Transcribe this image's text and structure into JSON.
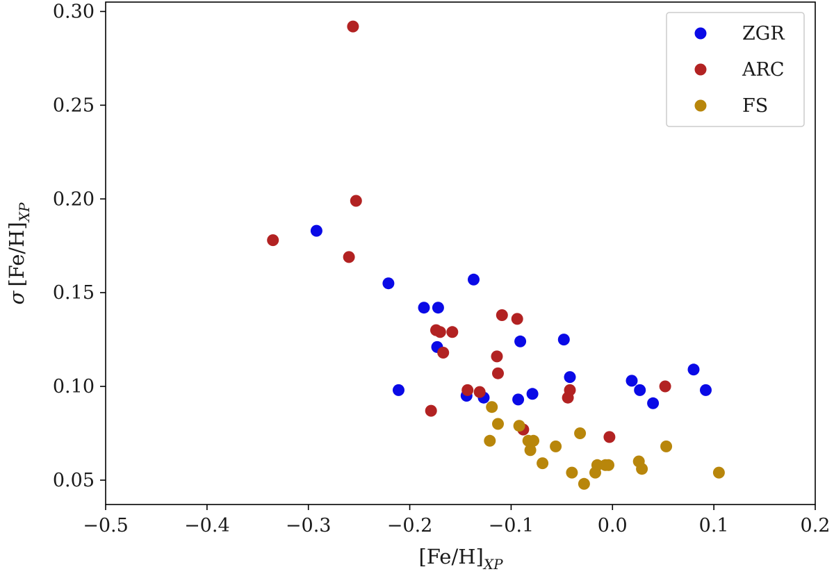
{
  "chart_data": {
    "type": "scatter",
    "xlabel": "[Fe/H]",
    "xlabel_sub": "XP",
    "ylabel_sigma": "σ",
    "ylabel": "[Fe/H]",
    "ylabel_sub": "XP",
    "xlim": [
      -0.5,
      0.2
    ],
    "ylim": [
      0.037,
      0.305
    ],
    "xticks": [
      -0.5,
      -0.4,
      -0.3,
      -0.2,
      -0.1,
      0.0,
      0.1,
      0.2
    ],
    "xtick_labels": [
      "−0.5",
      "−0.4",
      "−0.3",
      "−0.2",
      "−0.1",
      "0.0",
      "0.1",
      "0.2"
    ],
    "yticks": [
      0.05,
      0.1,
      0.15,
      0.2,
      0.25,
      0.3
    ],
    "ytick_labels": [
      "0.05",
      "0.10",
      "0.15",
      "0.20",
      "0.25",
      "0.30"
    ],
    "grid": false,
    "legend_position": "top-right",
    "series": [
      {
        "name": "ZGR",
        "color": "#0a0ae6",
        "points": [
          [
            -0.292,
            0.183
          ],
          [
            -0.221,
            0.155
          ],
          [
            -0.211,
            0.098
          ],
          [
            -0.186,
            0.142
          ],
          [
            -0.172,
            0.142
          ],
          [
            -0.173,
            0.121
          ],
          [
            -0.144,
            0.095
          ],
          [
            -0.137,
            0.157
          ],
          [
            -0.127,
            0.094
          ],
          [
            -0.093,
            0.093
          ],
          [
            -0.091,
            0.124
          ],
          [
            -0.079,
            0.096
          ],
          [
            -0.048,
            0.125
          ],
          [
            -0.042,
            0.105
          ],
          [
            0.019,
            0.103
          ],
          [
            0.027,
            0.098
          ],
          [
            0.04,
            0.091
          ],
          [
            0.08,
            0.109
          ],
          [
            0.092,
            0.098
          ]
        ]
      },
      {
        "name": "ARC",
        "color": "#b22222",
        "points": [
          [
            -0.256,
            0.292
          ],
          [
            -0.253,
            0.199
          ],
          [
            -0.335,
            0.178
          ],
          [
            -0.26,
            0.169
          ],
          [
            -0.174,
            0.13
          ],
          [
            -0.17,
            0.129
          ],
          [
            -0.158,
            0.129
          ],
          [
            -0.167,
            0.118
          ],
          [
            -0.179,
            0.087
          ],
          [
            -0.143,
            0.098
          ],
          [
            -0.131,
            0.097
          ],
          [
            -0.109,
            0.138
          ],
          [
            -0.114,
            0.116
          ],
          [
            -0.113,
            0.107
          ],
          [
            -0.094,
            0.136
          ],
          [
            -0.088,
            0.077
          ],
          [
            -0.042,
            0.098
          ],
          [
            -0.044,
            0.094
          ],
          [
            -0.003,
            0.073
          ],
          [
            0.052,
            0.1
          ]
        ]
      },
      {
        "name": "FS",
        "color": "#b8860b",
        "points": [
          [
            -0.119,
            0.089
          ],
          [
            -0.113,
            0.08
          ],
          [
            -0.121,
            0.071
          ],
          [
            -0.092,
            0.079
          ],
          [
            -0.083,
            0.071
          ],
          [
            -0.078,
            0.071
          ],
          [
            -0.081,
            0.066
          ],
          [
            -0.069,
            0.059
          ],
          [
            -0.056,
            0.068
          ],
          [
            -0.032,
            0.075
          ],
          [
            -0.04,
            0.054
          ],
          [
            -0.028,
            0.048
          ],
          [
            -0.015,
            0.058
          ],
          [
            -0.017,
            0.054
          ],
          [
            -0.007,
            0.058
          ],
          [
            -0.004,
            0.058
          ],
          [
            0.026,
            0.06
          ],
          [
            0.029,
            0.056
          ],
          [
            0.053,
            0.068
          ],
          [
            0.105,
            0.054
          ]
        ]
      }
    ]
  }
}
